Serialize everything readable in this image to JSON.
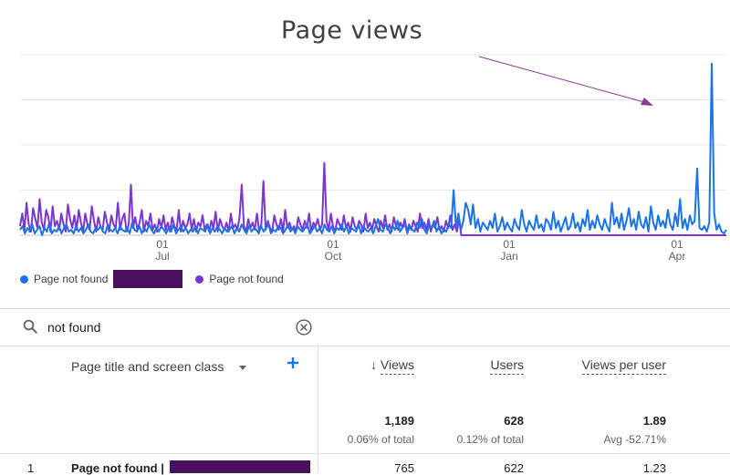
{
  "annotation": {
    "title": "Page views"
  },
  "legend": {
    "items": [
      {
        "label": "Page not found",
        "color": "#1a73e8"
      },
      {
        "label": "Page not found",
        "color": "#7c35d1"
      }
    ]
  },
  "search": {
    "value": "not found"
  },
  "table": {
    "dimension_header": "Page title and screen class",
    "columns": [
      {
        "label": "Views",
        "sorted": "descending"
      },
      {
        "label": "Users"
      },
      {
        "label": "Views per user"
      }
    ],
    "totals": {
      "views": "1,189",
      "views_sub": "0.06% of total",
      "users": "628",
      "users_sub": "0.12% of total",
      "views_per_user": "1.89",
      "views_per_user_sub": "Avg -52.71%"
    },
    "rows": [
      {
        "index": "1",
        "title": "Page not found |",
        "views": "765",
        "users": "622",
        "views_per_user": "1.23"
      }
    ]
  },
  "chart_data": {
    "type": "line",
    "x_ticks": [
      {
        "day": "01",
        "month": "Jul"
      },
      {
        "day": "01",
        "month": "Oct"
      },
      {
        "day": "01",
        "month": "Jan"
      },
      {
        "day": "01",
        "month": "Apr"
      }
    ],
    "series_colors": [
      "#1a73e8",
      "#7c35d1"
    ],
    "series": [
      {
        "values": [
          3,
          5,
          1,
          4,
          2,
          6,
          1,
          3,
          5,
          0,
          4,
          2,
          7,
          1,
          3,
          2,
          5,
          1,
          4,
          6,
          2,
          3,
          1,
          5,
          2,
          4,
          1,
          3,
          6,
          2,
          1,
          4,
          3,
          5,
          2,
          1,
          6,
          3,
          2,
          4,
          1,
          5,
          3,
          2,
          4,
          1,
          7,
          3,
          2,
          5,
          1,
          4,
          2,
          6,
          3,
          1,
          4,
          2,
          5,
          3,
          1,
          4,
          2,
          6,
          1,
          3,
          5,
          2,
          4,
          1,
          3,
          2,
          5,
          1,
          4,
          3,
          2,
          6,
          1,
          4,
          2,
          5,
          3,
          1,
          4,
          2,
          3,
          5,
          1,
          4,
          2,
          6,
          3,
          1,
          5,
          2,
          4,
          3,
          1,
          5,
          2,
          4,
          6,
          1,
          3,
          2,
          5,
          4,
          1,
          3,
          6,
          2,
          4,
          1,
          5,
          3,
          2,
          4,
          6,
          1,
          3,
          5,
          2,
          4,
          1,
          6,
          3,
          2,
          5,
          1,
          4,
          3,
          6,
          2,
          5,
          1,
          4,
          3,
          2,
          6,
          1,
          5,
          3,
          2,
          4,
          1,
          5,
          9,
          3,
          2,
          6,
          4,
          1,
          5,
          3,
          8,
          2,
          4,
          6,
          1,
          5,
          3,
          2,
          7,
          4,
          9,
          3,
          1,
          6,
          4,
          8,
          2,
          5,
          1,
          3,
          2,
          6,
          4,
          25,
          5,
          12,
          3,
          8,
          18,
          14,
          6,
          17,
          4,
          9,
          2,
          7,
          5,
          3,
          8,
          4,
          12,
          2,
          5,
          10,
          3,
          7,
          4,
          2,
          9,
          5,
          3,
          14,
          6,
          2,
          8,
          5,
          3,
          11,
          4,
          6,
          2,
          9,
          7,
          3,
          13,
          4,
          8,
          2,
          6,
          10,
          3,
          5,
          12,
          4,
          7,
          2,
          9,
          5,
          14,
          3,
          8,
          4,
          11,
          6,
          3,
          9,
          5,
          2,
          18,
          6,
          10,
          4,
          12,
          3,
          8,
          15,
          5,
          9,
          3,
          13,
          6,
          4,
          10,
          2,
          16,
          7,
          3,
          11,
          5,
          8,
          4,
          14,
          6,
          3,
          12,
          5,
          20,
          4,
          9,
          3,
          11,
          6,
          8,
          37,
          4,
          3,
          5,
          2,
          7,
          95,
          12,
          3,
          6,
          2,
          1,
          3
        ],
        "offset": 0
      },
      {
        "values": [
          5,
          12,
          3,
          18,
          6,
          2,
          15,
          9,
          4,
          20,
          7,
          3,
          14,
          10,
          2,
          16,
          5,
          8,
          3,
          12,
          6,
          2,
          17,
          9,
          4,
          11,
          3,
          14,
          7,
          2,
          12,
          6,
          3,
          16,
          8,
          2,
          10,
          5,
          3,
          13,
          7,
          2,
          11,
          6,
          4,
          18,
          3,
          9,
          12,
          2,
          6,
          28,
          4,
          10,
          3,
          7,
          14,
          2,
          8,
          5,
          12,
          3,
          6,
          2,
          9,
          4,
          11,
          3,
          7,
          2,
          10,
          5,
          3,
          14,
          2,
          8,
          4,
          6,
          12,
          3,
          9,
          2,
          7,
          5,
          11,
          3,
          6,
          2,
          8,
          4,
          13,
          2,
          9,
          5,
          3,
          7,
          2,
          12,
          4,
          6,
          3,
          10,
          28,
          5,
          2,
          9,
          4,
          7,
          3,
          12,
          2,
          6,
          30,
          3,
          8,
          4,
          2,
          11,
          6,
          3,
          9,
          2,
          14,
          4,
          7,
          3,
          5,
          2,
          10,
          6,
          3,
          8,
          4,
          12,
          2,
          7,
          5,
          9,
          3,
          6,
          40,
          8,
          3,
          12,
          5,
          2,
          9,
          6,
          3,
          11,
          4,
          7,
          2,
          10,
          5,
          3,
          8,
          6,
          2,
          12,
          4,
          7,
          3,
          9,
          5,
          2,
          8,
          4,
          11,
          3,
          6,
          2,
          10,
          5,
          3,
          7,
          4,
          9,
          2,
          6,
          3,
          8,
          5,
          2,
          12,
          4,
          7,
          3,
          9,
          2,
          6,
          4,
          10,
          3,
          5,
          2,
          8,
          4,
          11,
          3,
          6,
          2,
          9,
          0,
          0,
          0,
          0,
          0,
          0,
          0,
          0,
          0,
          0,
          0,
          0,
          0,
          0,
          0,
          0,
          0,
          0,
          0,
          0,
          0,
          0,
          0,
          0,
          0,
          0,
          0,
          0,
          0,
          0,
          0,
          0,
          0,
          0,
          0,
          0,
          0,
          0,
          0,
          0,
          0,
          0,
          0,
          0,
          0,
          0,
          0,
          0,
          0,
          0,
          0,
          0,
          0,
          0,
          0,
          0,
          0,
          0,
          0,
          0,
          0,
          0,
          0,
          0,
          0,
          0,
          0,
          0,
          0,
          0,
          0,
          0,
          0,
          0,
          0,
          0,
          0,
          0,
          0,
          0,
          0,
          0,
          0,
          0,
          0,
          0,
          0,
          0,
          0,
          0,
          0,
          0,
          0,
          0,
          0,
          0,
          0,
          0,
          0,
          0,
          0,
          0,
          0,
          0,
          0,
          0,
          0,
          0,
          0,
          0,
          0,
          0,
          0,
          0,
          0,
          0,
          0,
          0,
          0,
          0,
          0,
          0,
          0
        ],
        "offset": 0
      }
    ],
    "ylim": [
      0,
      100
    ],
    "grid": true,
    "legend_position": "bottom-left"
  }
}
